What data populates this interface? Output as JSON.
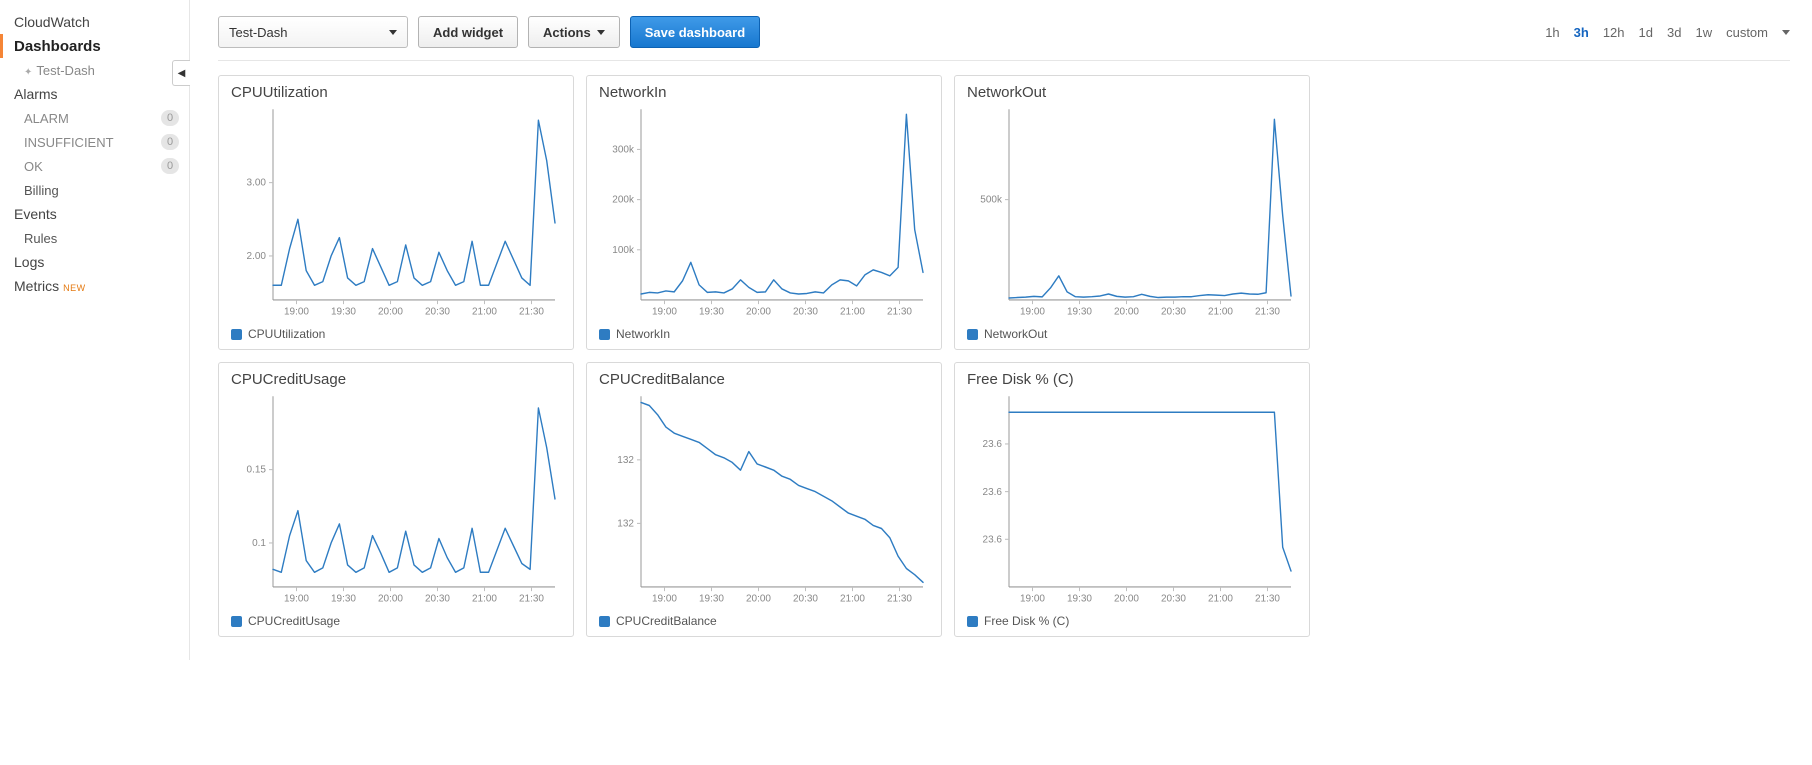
{
  "sidebar": {
    "top": "CloudWatch",
    "dashboards": {
      "label": "Dashboards",
      "items": [
        {
          "label": "Test-Dash"
        }
      ]
    },
    "alarms": {
      "label": "Alarms",
      "states": [
        {
          "label": "ALARM",
          "count": 0
        },
        {
          "label": "INSUFFICIENT",
          "count": 0
        },
        {
          "label": "OK",
          "count": 0
        }
      ],
      "billing_label": "Billing"
    },
    "events": {
      "label": "Events",
      "rules_label": "Rules"
    },
    "logs_label": "Logs",
    "metrics": {
      "label": "Metrics",
      "tag": "NEW"
    }
  },
  "toolbar": {
    "dashboard_name": "Test-Dash",
    "add_widget": "Add widget",
    "actions": "Actions",
    "save": "Save dashboard"
  },
  "time_range": {
    "options": [
      "1h",
      "3h",
      "12h",
      "1d",
      "3d",
      "1w",
      "custom"
    ],
    "active": "3h"
  },
  "chart_style": {
    "line_color": "#2e7cc2",
    "line_width": 1.4,
    "axis_color": "#999999",
    "grid_color": "#e0e0e0",
    "tick_color": "#bfbfbf",
    "font_size_axis": 10,
    "font_color_axis": "#888888",
    "title_fontsize": 15,
    "title_color": "#444444",
    "swatch_color": "#2e7cc2",
    "plot_left_pad": 42,
    "plot_right_pad": 6,
    "plot_top_pad": 6,
    "plot_bottom_pad": 22
  },
  "x_ticks": [
    "19:00",
    "19:30",
    "20:00",
    "20:30",
    "21:00",
    "21:30"
  ],
  "widgets": [
    {
      "title": "CPUUtilization",
      "legend": "CPUUtilization",
      "ylim": [
        1.4,
        4.0
      ],
      "y_ticks": [
        2.0,
        3.0
      ],
      "y_tick_fmt": "fixed2",
      "series": [
        1.6,
        1.6,
        2.1,
        2.5,
        1.8,
        1.6,
        1.65,
        2.0,
        2.25,
        1.7,
        1.6,
        1.65,
        2.1,
        1.85,
        1.6,
        1.65,
        2.15,
        1.7,
        1.6,
        1.65,
        2.05,
        1.8,
        1.6,
        1.65,
        2.2,
        1.6,
        1.6,
        1.9,
        2.2,
        1.95,
        1.7,
        1.6,
        3.85,
        3.3,
        2.45
      ]
    },
    {
      "title": "NetworkIn",
      "legend": "NetworkIn",
      "ylim": [
        0,
        380000
      ],
      "y_ticks": [
        100000,
        200000,
        300000
      ],
      "y_tick_fmt": "k",
      "series": [
        12000,
        15000,
        14000,
        18000,
        16000,
        38000,
        75000,
        30000,
        15000,
        16000,
        14000,
        22000,
        40000,
        25000,
        15000,
        16000,
        40000,
        22000,
        14000,
        12000,
        13000,
        16000,
        14000,
        30000,
        40000,
        38000,
        28000,
        50000,
        60000,
        55000,
        48000,
        65000,
        370000,
        140000,
        55000
      ]
    },
    {
      "title": "NetworkOut",
      "legend": "NetworkOut",
      "ylim": [
        0,
        950000
      ],
      "y_ticks": [
        500000
      ],
      "y_tick_fmt": "k",
      "series": [
        10000,
        12000,
        14000,
        18000,
        15000,
        60000,
        120000,
        40000,
        16000,
        14000,
        16000,
        20000,
        30000,
        18000,
        14000,
        16000,
        28000,
        18000,
        12000,
        14000,
        14000,
        16000,
        16000,
        22000,
        26000,
        24000,
        22000,
        30000,
        34000,
        30000,
        28000,
        36000,
        900000,
        420000,
        20000
      ]
    },
    {
      "title": "CPUCreditUsage",
      "legend": "CPUCreditUsage",
      "ylim": [
        0.07,
        0.2
      ],
      "y_ticks": [
        0.1,
        0.15
      ],
      "y_tick_fmt": "raw",
      "series": [
        0.082,
        0.08,
        0.105,
        0.122,
        0.088,
        0.08,
        0.083,
        0.1,
        0.113,
        0.085,
        0.08,
        0.083,
        0.105,
        0.093,
        0.08,
        0.083,
        0.108,
        0.085,
        0.08,
        0.083,
        0.103,
        0.09,
        0.08,
        0.083,
        0.11,
        0.08,
        0.08,
        0.095,
        0.11,
        0.098,
        0.086,
        0.082,
        0.192,
        0.165,
        0.13
      ]
    },
    {
      "title": "CPUCreditBalance",
      "legend": "CPUCreditBalance",
      "ylim": [
        129.0,
        135.2
      ],
      "y_ticks": [
        132,
        132
      ],
      "y_tick_fmt": "int",
      "series": [
        135.0,
        134.9,
        134.6,
        134.2,
        134.0,
        133.9,
        133.8,
        133.7,
        133.5,
        133.3,
        133.2,
        133.05,
        132.8,
        133.4,
        133.0,
        132.9,
        132.8,
        132.6,
        132.5,
        132.3,
        132.2,
        132.1,
        131.95,
        131.8,
        131.6,
        131.4,
        131.3,
        131.2,
        131.0,
        130.9,
        130.6,
        130.0,
        129.6,
        129.4,
        129.15
      ]
    },
    {
      "title": "Free Disk % (C)",
      "legend": "Free Disk % (C)",
      "ylim": [
        23.5,
        23.74
      ],
      "y_ticks": [
        23.6,
        23.6,
        23.6
      ],
      "y_tick_fmt": "fixed1",
      "series": [
        23.72,
        23.72,
        23.72,
        23.72,
        23.72,
        23.72,
        23.72,
        23.72,
        23.72,
        23.72,
        23.72,
        23.72,
        23.72,
        23.72,
        23.72,
        23.72,
        23.72,
        23.72,
        23.72,
        23.72,
        23.72,
        23.72,
        23.72,
        23.72,
        23.72,
        23.72,
        23.72,
        23.72,
        23.72,
        23.72,
        23.72,
        23.72,
        23.72,
        23.55,
        23.52
      ]
    }
  ]
}
